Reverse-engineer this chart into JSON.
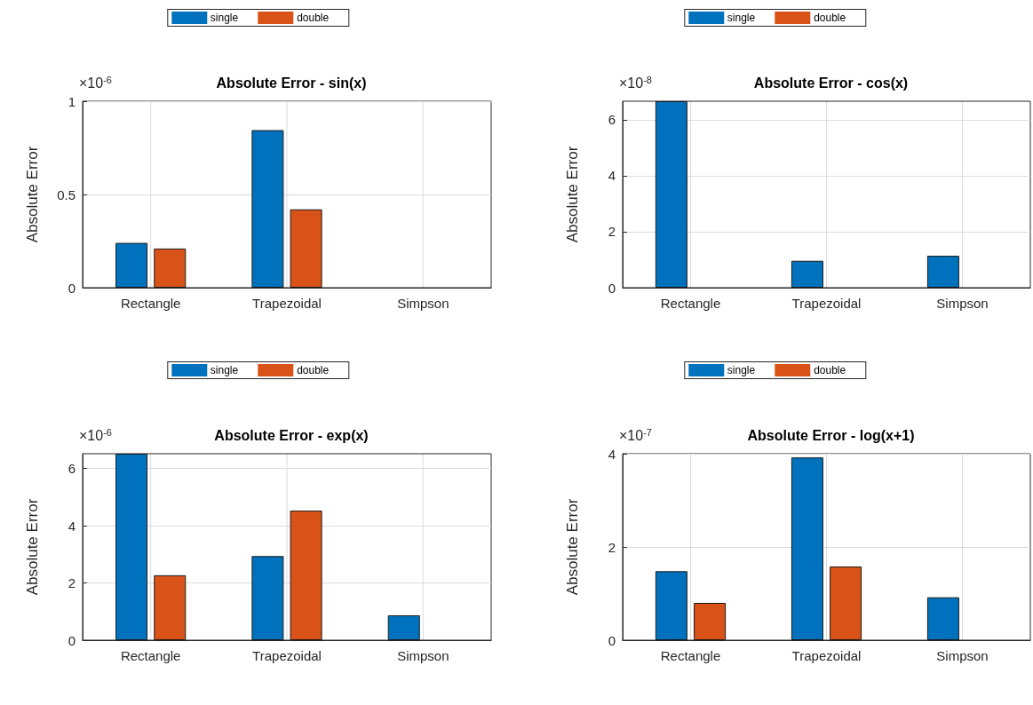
{
  "chart_data": [
    {
      "type": "bar",
      "title": "Absolute Error - sin(x)",
      "ylabel": "Absolute Error",
      "annotations": [
        "×10$^{-6}$"
      ],
      "categories": [
        "Rectangle",
        "Trapezoidal",
        "Simpson"
      ],
      "series": [
        {
          "name": "single",
          "color": "#0072bd",
          "values": [
            0.24,
            0.845,
            0
          ]
        },
        {
          "name": "double",
          "color": "#d95319",
          "values": [
            0.21,
            0.42,
            0
          ]
        }
      ],
      "ylim": [
        0,
        1
      ],
      "yticks": [
        0,
        0.5,
        1
      ],
      "grid": true,
      "legend": "top"
    },
    {
      "type": "bar",
      "title": "Absolute Error - cos(x)",
      "ylabel": "Absolute Error",
      "annotations": [
        "×10$^{-8}$"
      ],
      "categories": [
        "Rectangle",
        "Trapezoidal",
        "Simpson"
      ],
      "series": [
        {
          "name": "single",
          "color": "#0072bd",
          "values": [
            6.66,
            0.96,
            1.14
          ]
        },
        {
          "name": "double",
          "color": "#d95319",
          "values": [
            0,
            0,
            0
          ]
        }
      ],
      "ylim": [
        0,
        6.66
      ],
      "yticks": [
        0,
        2,
        4,
        6
      ],
      "grid": true,
      "legend": "top"
    },
    {
      "type": "bar",
      "title": "Absolute Error - exp(x)",
      "ylabel": "Absolute Error",
      "annotations": [
        "×10$^{-6}$"
      ],
      "categories": [
        "Rectangle",
        "Trapezoidal",
        "Simpson"
      ],
      "series": [
        {
          "name": "single",
          "color": "#0072bd",
          "values": [
            6.52,
            2.94,
            0.87
          ]
        },
        {
          "name": "double",
          "color": "#d95319",
          "values": [
            2.27,
            4.53,
            0
          ]
        }
      ],
      "ylim": [
        0,
        6.52
      ],
      "yticks": [
        0,
        2,
        4,
        6
      ],
      "grid": true,
      "legend": "top"
    },
    {
      "type": "bar",
      "title": "Absolute Error - log(x+1)",
      "ylabel": "Absolute Error",
      "annotations": [
        "×10$^{-7}$"
      ],
      "categories": [
        "Rectangle",
        "Trapezoidal",
        "Simpson"
      ],
      "series": [
        {
          "name": "single",
          "color": "#0072bd",
          "values": [
            1.48,
            3.92,
            0.92
          ]
        },
        {
          "name": "double",
          "color": "#d95319",
          "values": [
            0.8,
            1.58,
            0
          ]
        }
      ],
      "ylim": [
        0,
        4
      ],
      "yticks": [
        0,
        2,
        4
      ],
      "grid": true,
      "legend": "top"
    }
  ]
}
